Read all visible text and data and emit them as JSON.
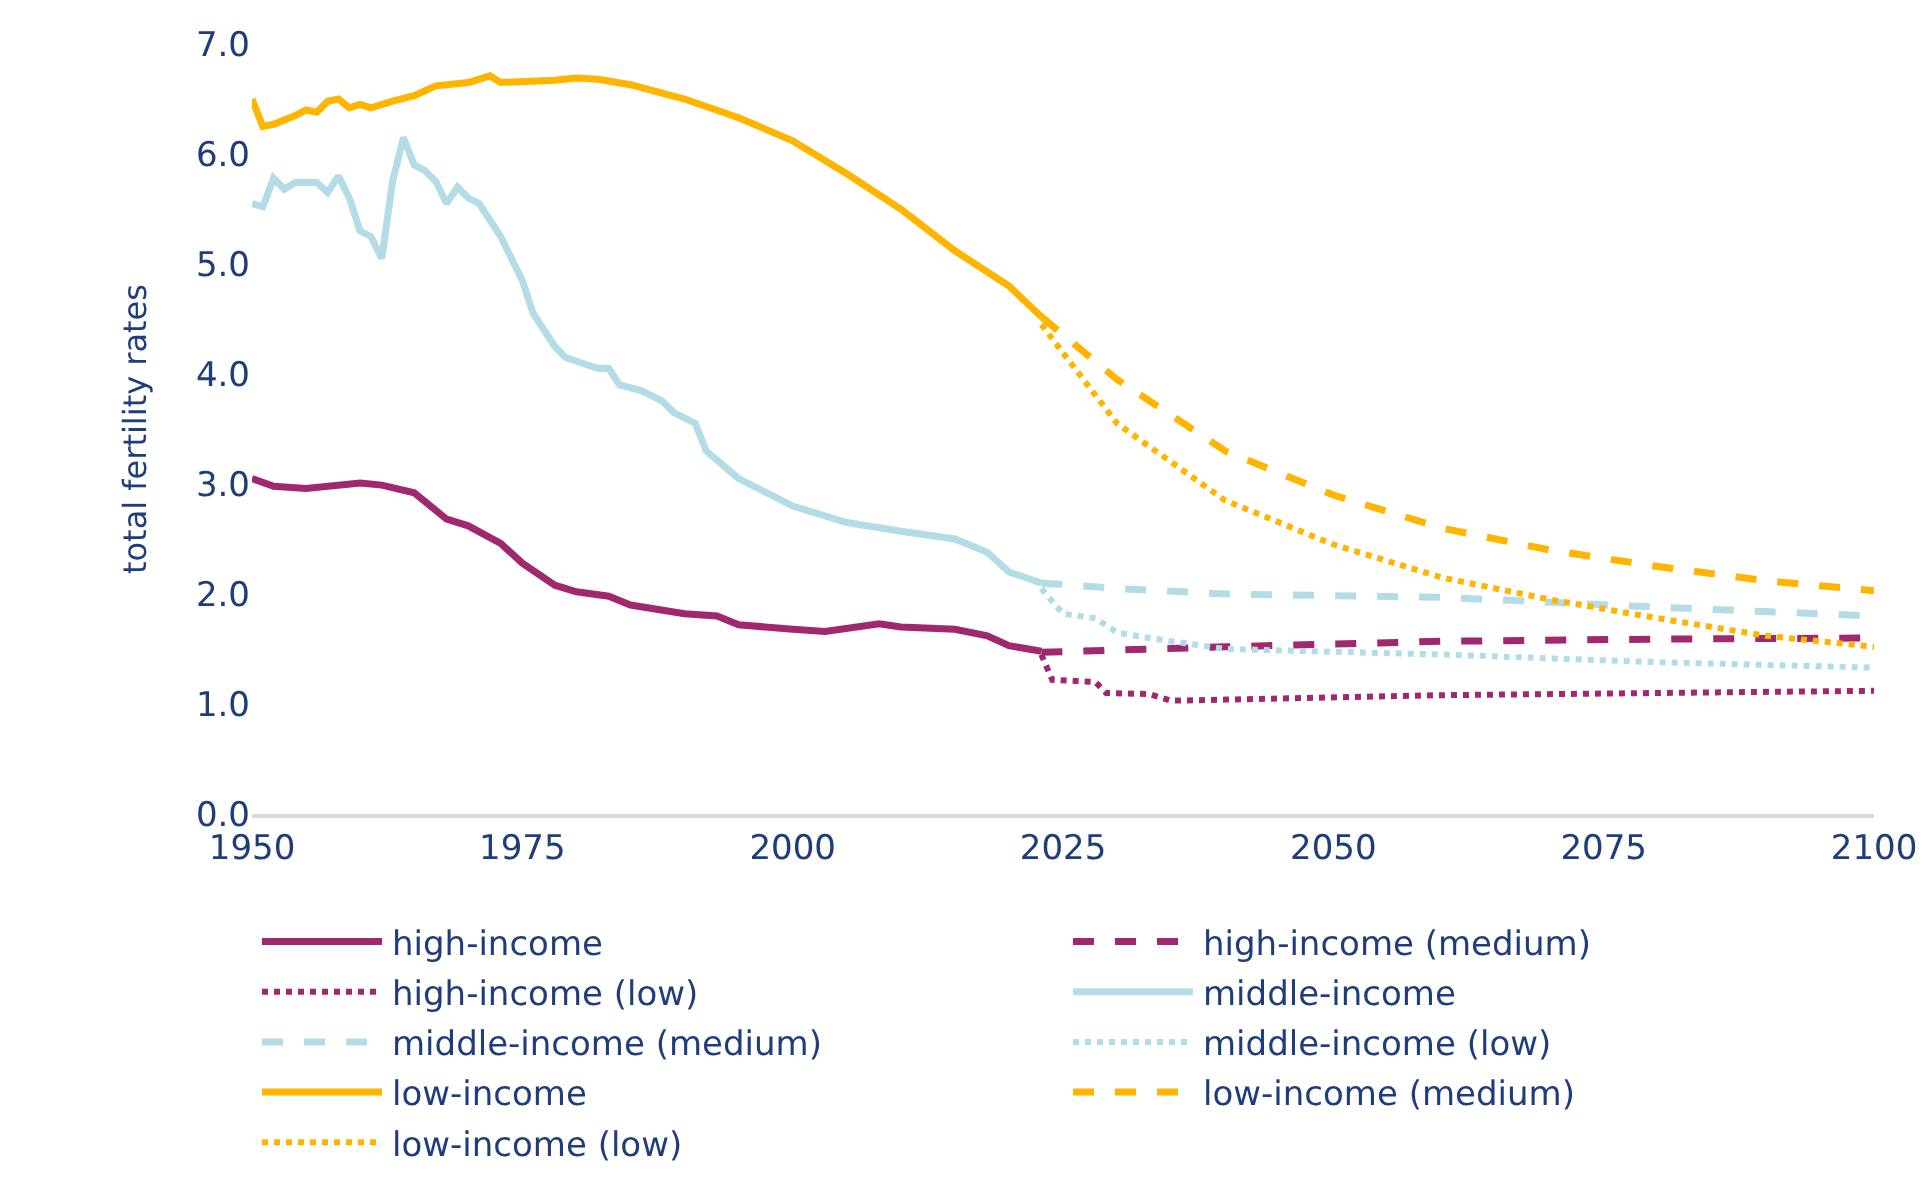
{
  "chart_data": {
    "type": "line",
    "ylabel": "total fertility rates",
    "xlim": [
      1950,
      2100
    ],
    "xticks": [
      1950,
      1975,
      2000,
      2025,
      2050,
      2075,
      2100
    ],
    "ylim": [
      0,
      7
    ],
    "yticks": [
      {
        "value": 0,
        "label": "0.0"
      },
      {
        "value": 1,
        "label": "1.0"
      },
      {
        "value": 2,
        "label": "2.0"
      },
      {
        "value": 3,
        "label": "3.0"
      },
      {
        "value": 4,
        "label": "4.0"
      },
      {
        "value": 5,
        "label": "5.0"
      },
      {
        "value": 6,
        "label": "6.0"
      },
      {
        "value": 7,
        "label": "7.0"
      }
    ],
    "grid": false,
    "legend": "bottom",
    "marker": "none",
    "series": [
      {
        "name": "high-income",
        "color": "#a0286e",
        "line_style": "solid",
        "x": [
          1950,
          1952,
          1955,
          1960,
          1962,
          1965,
          1968,
          1970,
          1973,
          1975,
          1978,
          1980,
          1983,
          1985,
          1990,
          1993,
          1995,
          2000,
          2003,
          2008,
          2010,
          2015,
          2018,
          2020,
          2023
        ],
        "values": [
          3.05,
          2.98,
          2.96,
          3.01,
          2.99,
          2.92,
          2.68,
          2.62,
          2.46,
          2.28,
          2.08,
          2.02,
          1.98,
          1.9,
          1.82,
          1.8,
          1.72,
          1.68,
          1.66,
          1.73,
          1.7,
          1.68,
          1.62,
          1.53,
          1.48
        ]
      },
      {
        "name": "high-income (medium)",
        "color": "#a0286e",
        "line_style": "dashed",
        "x": [
          2023,
          2040,
          2060,
          2080,
          2100
        ],
        "values": [
          1.47,
          1.52,
          1.57,
          1.59,
          1.6
        ]
      },
      {
        "name": "high-income (low)",
        "color": "#a0286e",
        "line_style": "dotted",
        "x": [
          2023,
          2024,
          2028,
          2029,
          2033,
          2035,
          2040,
          2060,
          2080,
          2100
        ],
        "values": [
          1.45,
          1.22,
          1.2,
          1.1,
          1.09,
          1.03,
          1.04,
          1.08,
          1.1,
          1.12
        ]
      },
      {
        "name": "middle-income",
        "color": "#b4dce6",
        "line_style": "solid",
        "x": [
          1950,
          1951,
          1952,
          1953,
          1954,
          1956,
          1957,
          1958,
          1959,
          1960,
          1961,
          1962,
          1963,
          1964,
          1965,
          1966,
          1967,
          1968,
          1969,
          1970,
          1971,
          1973,
          1975,
          1976,
          1978,
          1979,
          1982,
          1983,
          1984,
          1986,
          1988,
          1989,
          1991,
          1992,
          1995,
          2000,
          2005,
          2010,
          2015,
          2018,
          2020,
          2023
        ],
        "values": [
          5.55,
          5.52,
          5.78,
          5.68,
          5.74,
          5.74,
          5.65,
          5.8,
          5.6,
          5.3,
          5.25,
          5.05,
          5.75,
          6.15,
          5.9,
          5.85,
          5.75,
          5.55,
          5.7,
          5.6,
          5.55,
          5.25,
          4.85,
          4.55,
          4.25,
          4.15,
          4.05,
          4.05,
          3.9,
          3.85,
          3.75,
          3.65,
          3.55,
          3.3,
          3.05,
          2.8,
          2.65,
          2.57,
          2.5,
          2.38,
          2.2,
          2.1
        ]
      },
      {
        "name": "middle-income (medium)",
        "color": "#b4dce6",
        "line_style": "dashed",
        "x": [
          2023,
          2030,
          2040,
          2060,
          2080,
          2100
        ],
        "values": [
          2.1,
          2.05,
          2.0,
          1.97,
          1.88,
          1.8
        ]
      },
      {
        "name": "middle-income (low)",
        "color": "#b4dce6",
        "line_style": "dotted",
        "x": [
          2023,
          2025,
          2028,
          2030,
          2033,
          2040,
          2060,
          2080,
          2100
        ],
        "values": [
          2.05,
          1.82,
          1.78,
          1.65,
          1.6,
          1.5,
          1.45,
          1.38,
          1.33
        ]
      },
      {
        "name": "low-income",
        "color": "#ffb400",
        "line_style": "solid",
        "x": [
          1950,
          1951,
          1952,
          1954,
          1955,
          1956,
          1957,
          1958,
          1959,
          1960,
          1961,
          1963,
          1965,
          1967,
          1970,
          1972,
          1973,
          1978,
          1980,
          1982,
          1985,
          1990,
          1995,
          2000,
          2005,
          2010,
          2015,
          2020,
          2023
        ],
        "values": [
          6.5,
          6.25,
          6.27,
          6.35,
          6.4,
          6.38,
          6.48,
          6.5,
          6.42,
          6.45,
          6.42,
          6.48,
          6.53,
          6.62,
          6.65,
          6.71,
          6.65,
          6.67,
          6.69,
          6.68,
          6.63,
          6.5,
          6.33,
          6.12,
          5.82,
          5.5,
          5.12,
          4.8,
          4.52
        ]
      },
      {
        "name": "low-income (medium)",
        "color": "#ffb400",
        "line_style": "dashed",
        "x": [
          2023,
          2030,
          2040,
          2050,
          2060,
          2070,
          2080,
          2090,
          2100
        ],
        "values": [
          4.52,
          3.95,
          3.3,
          2.9,
          2.6,
          2.4,
          2.25,
          2.12,
          2.03
        ]
      },
      {
        "name": "low-income (low)",
        "color": "#ffb400",
        "line_style": "dotted",
        "x": [
          2023,
          2030,
          2040,
          2050,
          2060,
          2070,
          2080,
          2090,
          2100
        ],
        "values": [
          4.45,
          3.55,
          2.85,
          2.45,
          2.15,
          1.95,
          1.78,
          1.62,
          1.52
        ]
      }
    ]
  }
}
